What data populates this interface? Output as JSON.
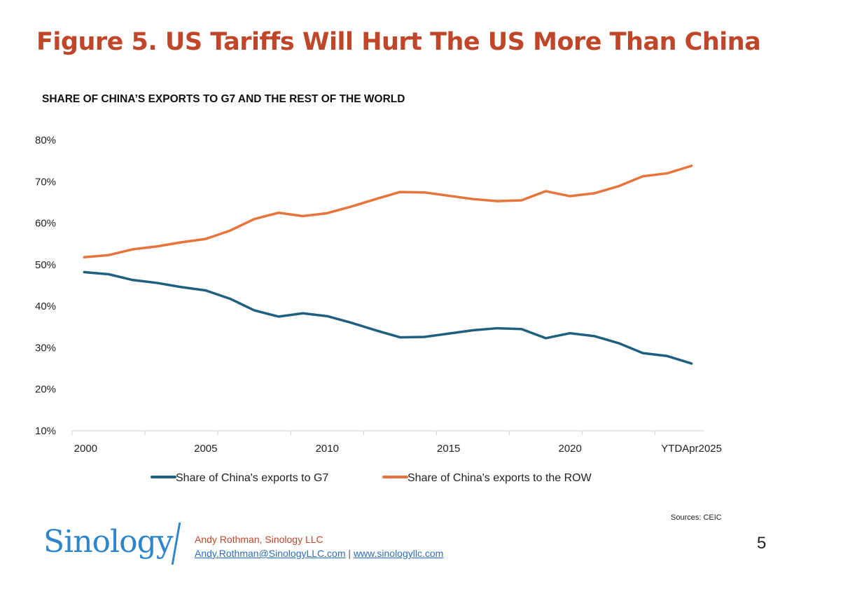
{
  "header": {
    "title": "Figure 5. US Tariffs Will Hurt The US More Than China"
  },
  "chart_data": {
    "type": "line",
    "title": "SHARE OF CHINA’S EXPORTS TO G7 AND THE REST OF THE WORLD",
    "xlabel": "",
    "ylabel": "",
    "x": [
      "2000",
      "2001",
      "2002",
      "2003",
      "2004",
      "2005",
      "2006",
      "2007",
      "2008",
      "2009",
      "2010",
      "2011",
      "2012",
      "2013",
      "2014",
      "2015",
      "2016",
      "2017",
      "2018",
      "2019",
      "2020",
      "2021",
      "2022",
      "2023",
      "2024",
      "YTDApr2025"
    ],
    "x_tick_labels": [
      "2000",
      "2005",
      "2010",
      "2015",
      "2020",
      "YTDApr2025"
    ],
    "y_tick_labels": [
      "80%",
      "70%",
      "60%",
      "50%",
      "40%",
      "30%",
      "20%",
      "10%"
    ],
    "ylim": [
      10,
      80
    ],
    "grid": false,
    "legend_position": "bottom",
    "series": [
      {
        "name": "Share of China's exports to G7",
        "color": "#1f5f7f",
        "values": [
          48.2,
          47.7,
          46.3,
          45.6,
          44.6,
          43.8,
          41.8,
          39.0,
          37.5,
          38.3,
          37.6,
          36.0,
          34.2,
          32.5,
          32.6,
          33.4,
          34.2,
          34.7,
          34.5,
          32.3,
          33.5,
          32.8,
          31.1,
          28.7,
          28.0,
          26.2
        ]
      },
      {
        "name": "Share of China's exports to the ROW",
        "color": "#e8743b",
        "values": [
          51.8,
          52.3,
          53.7,
          54.4,
          55.4,
          56.2,
          58.2,
          61.0,
          62.5,
          61.7,
          62.4,
          64.0,
          65.8,
          67.5,
          67.4,
          66.6,
          65.8,
          65.3,
          65.5,
          67.7,
          66.5,
          67.2,
          68.9,
          71.3,
          72.0,
          73.8
        ]
      }
    ]
  },
  "footer": {
    "sources": "Sources: CEIC",
    "logo": "Sinology",
    "author": "Andy Rothman, Sinology LLC",
    "email": "Andy.Rothman@SinologyLLC.com",
    "separator": "|",
    "website": "www.sinologyllc.com",
    "page_number": "5"
  }
}
